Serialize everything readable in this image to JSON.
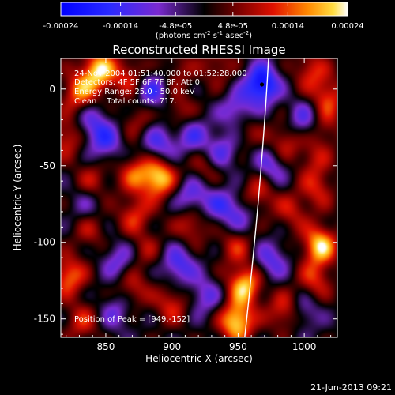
{
  "chart_data": {
    "type": "heatmap",
    "title": "Reconstructed RHESSI Image",
    "xlabel": "Heliocentric X (arcsec)",
    "ylabel": "Heliocentric Y (arcsec)",
    "xlim": [
      816,
      1025
    ],
    "ylim": [
      -162,
      20
    ],
    "x_ticks": [
      850,
      900,
      950,
      1000
    ],
    "y_ticks": [
      0,
      -50,
      -100,
      -150
    ],
    "colorbar": {
      "min": -0.00024,
      "max": 0.00024,
      "tick_labels": [
        "-0.00024",
        "-0.00014",
        "-4.8e-05",
        "4.8e-05",
        "0.00014",
        "0.00024"
      ],
      "tick_values": [
        -0.00024,
        -0.00014,
        -4.8e-05,
        4.8e-05,
        0.00014,
        0.00024
      ],
      "label_main": "(photons cm",
      "label_exp1": "-2",
      "label_mid": " s",
      "label_exp2": "-1",
      "label_end": " asec",
      "label_exp3": "-2",
      "label_close": ")"
    },
    "info_lines": [
      "24-Nov-2004 01:51:40.000 to 01:52:28.000",
      "Detectors: 4F 5F 6F 7F 8F, Att 0",
      "Energy Range: 25.0 - 50.0 keV",
      "Clean    Total counts: 717."
    ],
    "peak": {
      "label": "Position of Peak = [949,-152]",
      "x": 949,
      "y": -152
    },
    "blobs": [
      {
        "x": 845,
        "y": 12,
        "v": 0.95
      },
      {
        "x": 830,
        "y": -2,
        "v": 0.7
      },
      {
        "x": 868,
        "y": 8,
        "v": 0.45
      },
      {
        "x": 905,
        "y": 12,
        "v": 0.3
      },
      {
        "x": 935,
        "y": 15,
        "v": 0.35
      },
      {
        "x": 1005,
        "y": 12,
        "v": 0.5
      },
      {
        "x": 1018,
        "y": -5,
        "v": 0.55
      },
      {
        "x": 1015,
        "y": -25,
        "v": 0.35
      },
      {
        "x": 875,
        "y": -20,
        "v": 0.35
      },
      {
        "x": 905,
        "y": -15,
        "v": 0.4
      },
      {
        "x": 955,
        "y": -25,
        "v": 0.4
      },
      {
        "x": 985,
        "y": -35,
        "v": 0.5
      },
      {
        "x": 1008,
        "y": -45,
        "v": 0.35
      },
      {
        "x": 820,
        "y": -32,
        "v": 0.5
      },
      {
        "x": 840,
        "y": -60,
        "v": 0.4
      },
      {
        "x": 872,
        "y": -55,
        "v": 0.55
      },
      {
        "x": 890,
        "y": -58,
        "v": 0.95
      },
      {
        "x": 925,
        "y": -52,
        "v": 0.35
      },
      {
        "x": 965,
        "y": -68,
        "v": 0.5
      },
      {
        "x": 1010,
        "y": -65,
        "v": 0.45
      },
      {
        "x": 990,
        "y": -80,
        "v": 0.4
      },
      {
        "x": 838,
        "y": -92,
        "v": 0.35
      },
      {
        "x": 872,
        "y": -82,
        "v": 0.5
      },
      {
        "x": 915,
        "y": -88,
        "v": 0.5
      },
      {
        "x": 1012,
        "y": -102,
        "v": 0.95
      },
      {
        "x": 948,
        "y": -102,
        "v": 0.45
      },
      {
        "x": 880,
        "y": -105,
        "v": 0.3
      },
      {
        "x": 822,
        "y": -122,
        "v": 0.7
      },
      {
        "x": 870,
        "y": -130,
        "v": 0.45
      },
      {
        "x": 900,
        "y": -140,
        "v": 0.5
      },
      {
        "x": 955,
        "y": -128,
        "v": 0.9
      },
      {
        "x": 985,
        "y": -145,
        "v": 0.55
      },
      {
        "x": 1008,
        "y": -125,
        "v": 0.5
      },
      {
        "x": 832,
        "y": -152,
        "v": 0.45
      },
      {
        "x": 949,
        "y": -152,
        "v": 1.0
      },
      {
        "x": 968,
        "y": 3,
        "v": -1.0
      },
      {
        "x": 950,
        "y": -15,
        "v": -0.6
      },
      {
        "x": 885,
        "y": -2,
        "v": -0.6
      },
      {
        "x": 850,
        "y": -35,
        "v": -0.5
      },
      {
        "x": 840,
        "y": -22,
        "v": -0.45
      },
      {
        "x": 890,
        "y": -35,
        "v": -0.55
      },
      {
        "x": 915,
        "y": -30,
        "v": -0.5
      },
      {
        "x": 938,
        "y": -40,
        "v": -0.5
      },
      {
        "x": 975,
        "y": -50,
        "v": -0.5
      },
      {
        "x": 1000,
        "y": -20,
        "v": -0.5
      },
      {
        "x": 915,
        "y": -70,
        "v": -0.55
      },
      {
        "x": 935,
        "y": -75,
        "v": -0.4
      },
      {
        "x": 950,
        "y": -82,
        "v": -0.45
      },
      {
        "x": 905,
        "y": -115,
        "v": -0.6
      },
      {
        "x": 860,
        "y": -112,
        "v": -0.45
      },
      {
        "x": 975,
        "y": -112,
        "v": -0.5
      },
      {
        "x": 925,
        "y": -135,
        "v": -0.45
      },
      {
        "x": 858,
        "y": -145,
        "v": -0.4
      },
      {
        "x": 1000,
        "y": -145,
        "v": -0.4
      },
      {
        "x": 835,
        "y": -75,
        "v": -0.3
      }
    ],
    "limb_curve": [
      {
        "x": 973,
        "y": 20
      },
      {
        "x": 968,
        "y": -60
      },
      {
        "x": 955,
        "y": -162
      }
    ]
  },
  "footer": {
    "timestamp": "21-Jun-2013 09:21"
  }
}
